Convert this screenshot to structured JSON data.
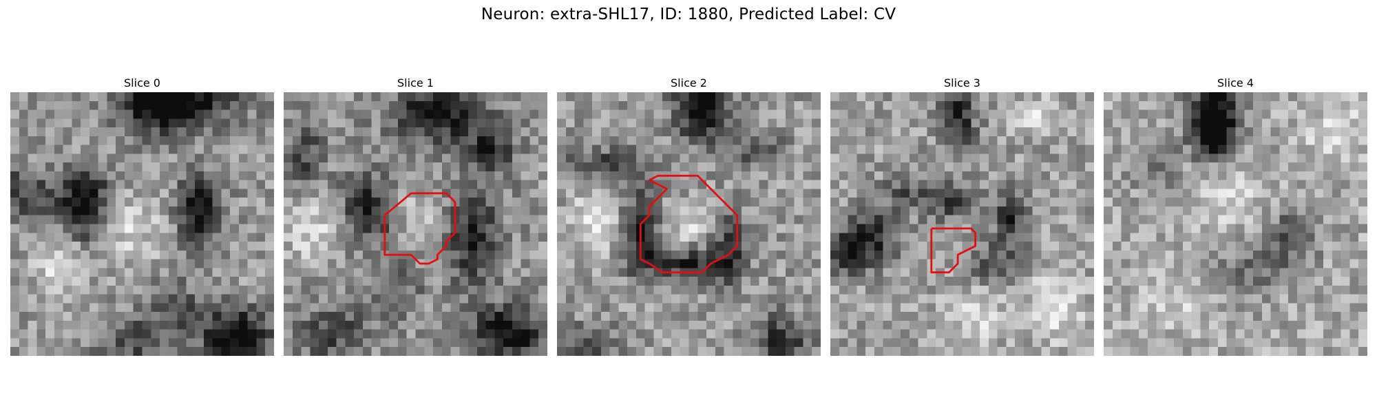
{
  "title": "Neuron: extra-SHL17, ID: 1880, Predicted Label: CV",
  "grid_size": 30,
  "contour_color": "#e01010",
  "slices": [
    {
      "label": "Slice 0",
      "blobs": [
        [
          19,
          0,
          7,
          3,
          -0.55
        ],
        [
          17,
          2,
          4,
          3,
          -0.4
        ],
        [
          8,
          11,
          3,
          3,
          -0.45
        ],
        [
          21,
          13,
          2.5,
          4,
          -0.55
        ],
        [
          8,
          14,
          2,
          3,
          -0.4
        ],
        [
          0,
          11,
          5,
          3,
          -0.35
        ],
        [
          25,
          27,
          4,
          3,
          -0.6
        ],
        [
          18,
          24,
          3,
          3,
          -0.3
        ],
        [
          13,
          15,
          4,
          4,
          0.2
        ],
        [
          5,
          19,
          3,
          3,
          0.25
        ],
        [
          13,
          28,
          4,
          3,
          -0.3
        ]
      ],
      "base": 0.6,
      "contour": []
    },
    {
      "label": "Slice 1",
      "blobs": [
        [
          17,
          2,
          5,
          3,
          -0.55
        ],
        [
          23,
          6,
          3,
          3,
          -0.35
        ],
        [
          9,
          13,
          3,
          4,
          -0.45
        ],
        [
          21,
          16,
          3,
          5,
          -0.45
        ],
        [
          2,
          7,
          2,
          4,
          -0.3
        ],
        [
          25,
          27,
          4,
          3,
          -0.6
        ],
        [
          5,
          27,
          4,
          3,
          -0.3
        ],
        [
          3,
          15,
          4,
          4,
          0.25
        ],
        [
          15,
          14,
          3,
          3,
          0.2
        ],
        [
          12,
          22,
          3,
          3,
          -0.25
        ]
      ],
      "base": 0.58,
      "contour": [
        [
          11.5,
          14
        ],
        [
          14.5,
          11.5
        ],
        [
          18.5,
          11.5
        ],
        [
          19.5,
          12.5
        ],
        [
          19.5,
          16
        ],
        [
          18.5,
          17
        ],
        [
          18.5,
          17.5
        ],
        [
          17.5,
          18.5
        ],
        [
          17.5,
          19
        ],
        [
          16.5,
          19.5
        ],
        [
          15.5,
          19.5
        ],
        [
          14.5,
          18.5
        ],
        [
          11.5,
          18.5
        ],
        [
          11.5,
          14
        ]
      ]
    },
    {
      "label": "Slice 2",
      "blobs": [
        [
          16,
          1,
          3,
          4,
          -0.6
        ],
        [
          9,
          15,
          2,
          4,
          -0.55
        ],
        [
          19,
          17,
          2,
          4,
          -0.4
        ],
        [
          14,
          19,
          5,
          2,
          -0.45
        ],
        [
          5,
          8,
          5,
          2,
          -0.35
        ],
        [
          22,
          6,
          3,
          2,
          -0.3
        ],
        [
          25,
          28,
          3,
          3,
          -0.45
        ],
        [
          4,
          14,
          3,
          4,
          0.3
        ],
        [
          15,
          15,
          3,
          3,
          0.2
        ],
        [
          3,
          28,
          3,
          2,
          -0.35
        ]
      ],
      "base": 0.6,
      "contour": [
        [
          10.5,
          10
        ],
        [
          11.5,
          9.5
        ],
        [
          16,
          9.5
        ],
        [
          20.5,
          14
        ],
        [
          20.5,
          17.5
        ],
        [
          19.5,
          18.5
        ],
        [
          18.5,
          19
        ],
        [
          17.5,
          19.5
        ],
        [
          16.5,
          20.5
        ],
        [
          12,
          20.5
        ],
        [
          10.5,
          19.5
        ],
        [
          9.5,
          19
        ],
        [
          9.5,
          15
        ],
        [
          10.5,
          14
        ],
        [
          10.5,
          13
        ],
        [
          11.5,
          12
        ],
        [
          12.5,
          11
        ],
        [
          11.5,
          10.5
        ],
        [
          10.5,
          10
        ]
      ]
    },
    {
      "label": "Slice 3",
      "blobs": [
        [
          14,
          2,
          2,
          4,
          -0.5
        ],
        [
          20,
          14,
          2,
          3,
          -0.45
        ],
        [
          4,
          16,
          3,
          3,
          -0.5
        ],
        [
          1,
          18,
          2,
          2,
          -0.5
        ],
        [
          13,
          12,
          3,
          2,
          -0.35
        ],
        [
          18,
          19,
          3,
          2,
          -0.3
        ],
        [
          25,
          24,
          3,
          4,
          0.3
        ],
        [
          16,
          25,
          4,
          3,
          0.2
        ],
        [
          23,
          2,
          3,
          2,
          0.25
        ],
        [
          8,
          11,
          3,
          2,
          -0.25
        ]
      ],
      "base": 0.62,
      "contour": [
        [
          11.5,
          15.5
        ],
        [
          12,
          15.5
        ],
        [
          16,
          15.5
        ],
        [
          16.5,
          16
        ],
        [
          16.5,
          17.5
        ],
        [
          15.5,
          18
        ],
        [
          14.5,
          18.5
        ],
        [
          14.5,
          19.5
        ],
        [
          13.5,
          20.5
        ],
        [
          11.5,
          20.5
        ],
        [
          11.5,
          15.5
        ]
      ]
    },
    {
      "label": "Slice 4",
      "blobs": [
        [
          12,
          2,
          3,
          4,
          -0.75
        ],
        [
          12,
          5,
          2,
          2,
          -0.4
        ],
        [
          21,
          16,
          3,
          3,
          -0.35
        ],
        [
          16,
          20,
          4,
          3,
          -0.25
        ],
        [
          5,
          8,
          3,
          3,
          -0.2
        ],
        [
          26,
          4,
          4,
          3,
          0.2
        ],
        [
          8,
          24,
          4,
          3,
          0.15
        ],
        [
          14,
          12,
          4,
          3,
          0.15
        ]
      ],
      "base": 0.66,
      "contour": []
    }
  ]
}
